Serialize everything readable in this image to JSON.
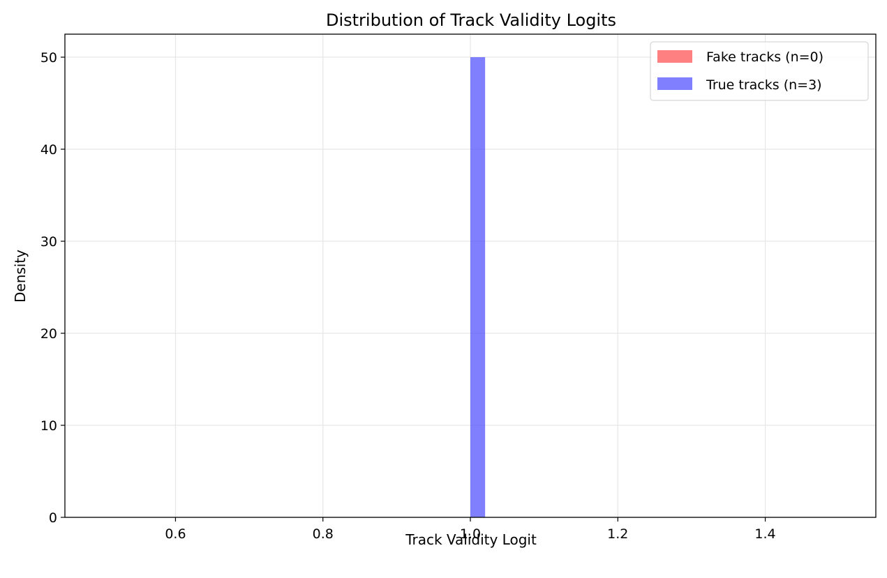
{
  "chart_data": {
    "type": "bar",
    "title": "Distribution of Track Validity Logits",
    "xlabel": "Track Validity Logit",
    "ylabel": "Density",
    "xlim": [
      0.45,
      1.55
    ],
    "ylim": [
      0,
      52.5
    ],
    "xticks": [
      0.6,
      0.8,
      1.0,
      1.2,
      1.4
    ],
    "xtick_labels": [
      "0.6",
      "0.8",
      "1.0",
      "1.2",
      "1.4"
    ],
    "yticks": [
      0,
      10,
      20,
      30,
      40,
      50
    ],
    "ytick_labels": [
      "0",
      "10",
      "20",
      "30",
      "40",
      "50"
    ],
    "grid": true,
    "legend_position": "top-right",
    "series": [
      {
        "name": "Fake tracks (n=0)",
        "color": "#ff4a4a",
        "bins": []
      },
      {
        "name": "True tracks (n=3)",
        "color": "#4a4aff",
        "bins": [
          {
            "x0": 1.0,
            "x1": 1.02,
            "density": 50
          }
        ]
      }
    ]
  }
}
